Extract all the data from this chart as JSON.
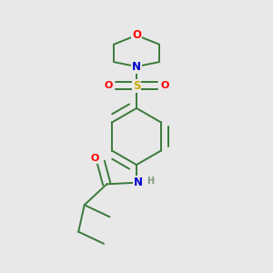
{
  "background_color": "#e8e8e8",
  "bond_color": "#3a7a3a",
  "atom_colors": {
    "O": "#ff0000",
    "N": "#0000cc",
    "S": "#ccaa00",
    "H": "#7a9a7a",
    "C": "#3a7a3a"
  },
  "figsize": [
    3.0,
    3.0
  ],
  "dpi": 100
}
